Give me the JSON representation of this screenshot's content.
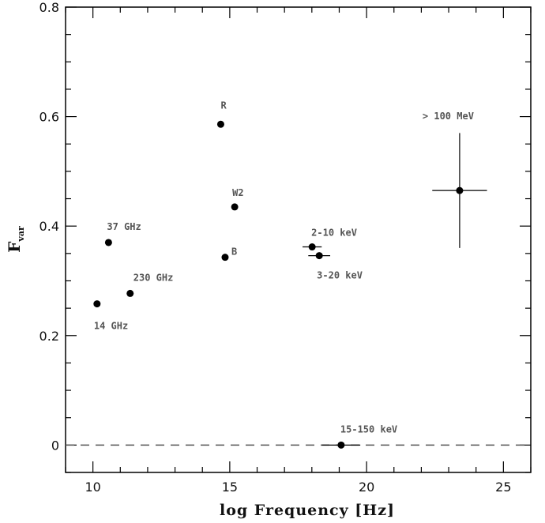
{
  "chart_data": {
    "type": "scatter",
    "xlabel": "log Frequency [Hz]",
    "ylabel_main": "F",
    "ylabel_sub": "var",
    "xlim": [
      9,
      26
    ],
    "ylim": [
      -0.05,
      0.8
    ],
    "x_ticks_major": [
      10,
      15,
      20,
      25
    ],
    "x_tick_labels": [
      "10",
      "15",
      "20",
      "25"
    ],
    "y_ticks_major": [
      0,
      0.2,
      0.4,
      0.6,
      0.8
    ],
    "y_tick_labels": [
      "0",
      "0.2",
      "0.4",
      "0.6",
      "0.8"
    ],
    "reference_line": {
      "y": 0,
      "style": "dashed"
    },
    "grid": false,
    "points": [
      {
        "label": "14 GHz",
        "x": 10.15,
        "y": 0.258
      },
      {
        "label": "37 GHz",
        "x": 10.57,
        "y": 0.37
      },
      {
        "label": "230 GHz",
        "x": 11.36,
        "y": 0.277
      },
      {
        "label": "R",
        "x": 14.67,
        "y": 0.586
      },
      {
        "label": "B",
        "x": 14.83,
        "y": 0.343
      },
      {
        "label": "W2",
        "x": 15.18,
        "y": 0.435
      },
      {
        "label": "2-10 keV",
        "x": 18.01,
        "y": 0.362,
        "xerr": 0.35
      },
      {
        "label": "3-20 keV",
        "x": 18.27,
        "y": 0.346,
        "xerr": 0.4
      },
      {
        "label": "15-150 keV",
        "x": 19.07,
        "y": 0.0,
        "xerr": 0.7
      },
      {
        "label": "> 100 MeV",
        "x": 23.4,
        "y": 0.465,
        "xerr": 1.0,
        "yerr": 0.105
      }
    ]
  }
}
